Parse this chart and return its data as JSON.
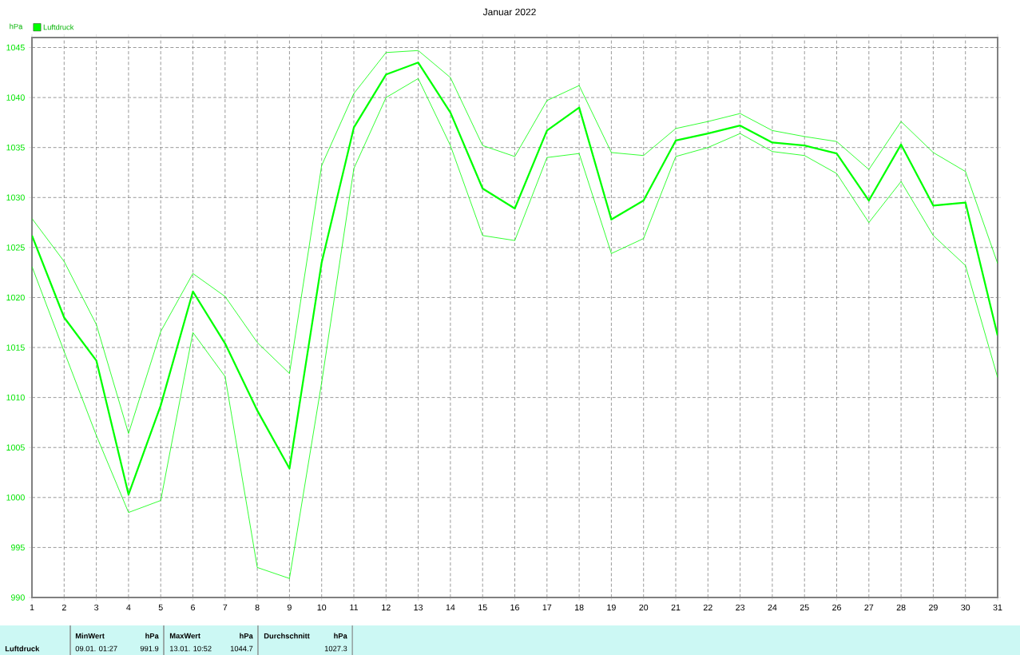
{
  "chart_data": {
    "type": "line",
    "title": "Januar 2022",
    "ylabel": "hPa",
    "x": [
      1,
      2,
      3,
      4,
      5,
      6,
      7,
      8,
      9,
      10,
      11,
      12,
      13,
      14,
      15,
      16,
      17,
      18,
      19,
      20,
      21,
      22,
      23,
      24,
      25,
      26,
      27,
      28,
      29,
      30,
      31
    ],
    "series": [
      {
        "name": "Luftdruck",
        "color": "#00ff00",
        "values": [
          1026.2,
          1018.0,
          1013.7,
          1000.3,
          1009.2,
          1020.6,
          1015.4,
          1008.7,
          1002.9,
          1023.5,
          1037.0,
          1042.3,
          1043.5,
          1038.5,
          1030.9,
          1028.9,
          1036.7,
          1039.0,
          1027.8,
          1029.7,
          1035.7,
          1036.4,
          1037.2,
          1035.5,
          1035.2,
          1034.4,
          1029.7,
          1035.3,
          1029.2,
          1029.5,
          1016.2
        ]
      },
      {
        "color": "#00ff00",
        "values": [
          1027.9,
          1023.6,
          1017.3,
          1006.4,
          1016.6,
          1022.4,
          1020.1,
          1015.5,
          1012.4,
          1033.2,
          1040.4,
          1044.5,
          1044.7,
          1042.0,
          1035.2,
          1034.1,
          1039.7,
          1041.2,
          1034.5,
          1034.2,
          1036.9,
          1037.6,
          1038.4,
          1036.7,
          1036.1,
          1035.6,
          1032.8,
          1037.6,
          1034.5,
          1032.6,
          1023.4
        ]
      },
      {
        "color": "#00ff00",
        "values": [
          1023.1,
          1014.6,
          1006.2,
          998.5,
          999.7,
          1016.5,
          1012.1,
          993.0,
          991.9,
          1011.5,
          1032.9,
          1040.0,
          1041.9,
          1035.2,
          1026.2,
          1025.7,
          1034.0,
          1034.4,
          1024.4,
          1025.9,
          1034.1,
          1035.0,
          1036.4,
          1034.6,
          1034.2,
          1032.4,
          1027.5,
          1031.6,
          1026.2,
          1023.2,
          1012.0
        ]
      }
    ],
    "xlim": [
      1,
      31
    ],
    "xticks": [
      1,
      2,
      3,
      4,
      5,
      6,
      7,
      8,
      9,
      10,
      11,
      12,
      13,
      14,
      15,
      16,
      17,
      18,
      19,
      20,
      21,
      22,
      23,
      24,
      25,
      26,
      27,
      28,
      29,
      30,
      31
    ],
    "ylim": [
      990,
      1046
    ],
    "yticks": [
      990,
      995,
      1000,
      1005,
      1010,
      1015,
      1020,
      1025,
      1030,
      1035,
      1040,
      1045
    ],
    "grid": true,
    "legend": "top left",
    "marker": "none",
    "line_style": "solid",
    "annotations": [
      "Luftdruck",
      "MinWert",
      "hPa",
      "09.01.  01:27",
      "991.9",
      "MaxWert",
      "hPa",
      "13.01.  10:52",
      "1044.7",
      "Durchschnitt",
      "hPa",
      "1027.3"
    ]
  }
}
